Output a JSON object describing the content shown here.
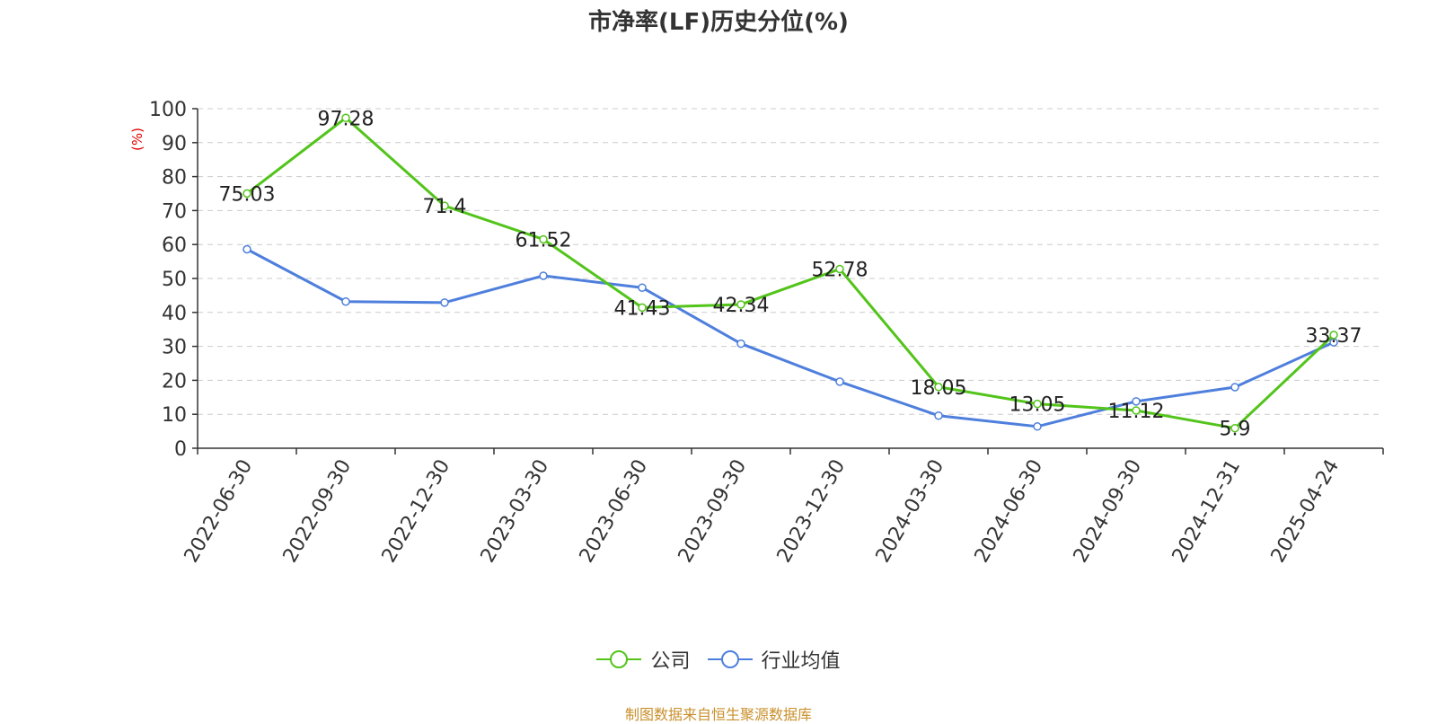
{
  "chart_data": {
    "type": "line",
    "title": "市净率(LF)历史分位(%)",
    "ylabel": "(%)",
    "ylim": [
      0,
      100
    ],
    "yticks": [
      0,
      10,
      20,
      30,
      40,
      50,
      60,
      70,
      80,
      90,
      100
    ],
    "grid": true,
    "legend_position": "bottom-center",
    "categories": [
      "2022-06-30",
      "2022-09-30",
      "2022-12-30",
      "2023-03-30",
      "2023-06-30",
      "2023-09-30",
      "2023-12-30",
      "2024-03-30",
      "2024-06-30",
      "2024-09-30",
      "2024-12-31",
      "2025-04-24"
    ],
    "series": [
      {
        "name": "公司",
        "color": "#52c41a",
        "values": [
          75.03,
          97.28,
          71.4,
          61.52,
          41.43,
          42.34,
          52.78,
          18.05,
          13.05,
          11.12,
          5.9,
          33.37
        ],
        "show_labels": true
      },
      {
        "name": "行业均值",
        "color": "#4e7fdd",
        "values": [
          58.6,
          43.2,
          42.9,
          50.8,
          47.3,
          30.8,
          19.6,
          9.6,
          6.4,
          13.8,
          18.0,
          31.2
        ],
        "show_labels": false
      }
    ]
  },
  "source_note": "制图数据来自恒生聚源数据库"
}
